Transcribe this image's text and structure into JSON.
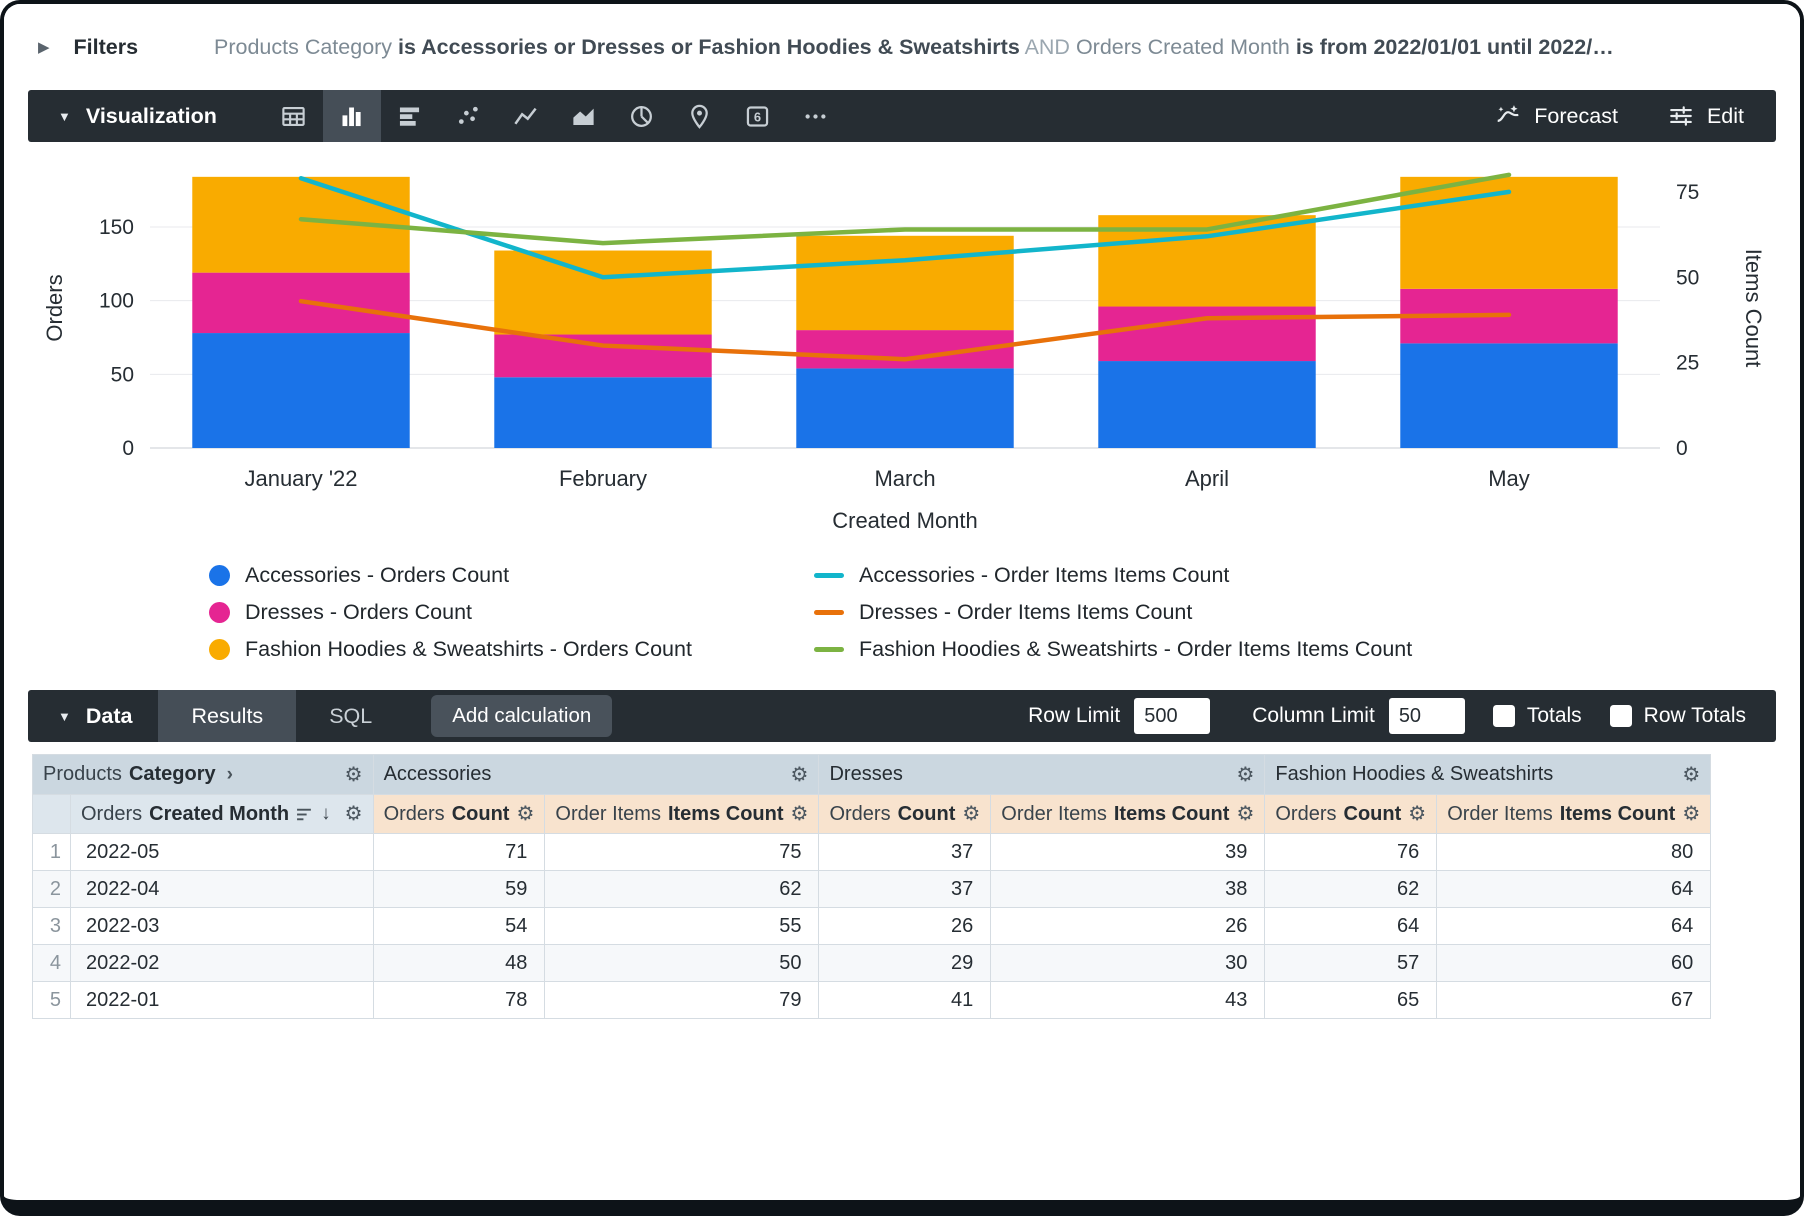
{
  "filters_bar": {
    "label": "Filters",
    "segments": [
      {
        "text": "Products Category ",
        "style": "dim"
      },
      {
        "text": "is Accessories or Dresses or Fashion Hoodies & Sweatshirts",
        "style": "em"
      },
      {
        "text": " AND ",
        "style": "and"
      },
      {
        "text": "Orders Created Month ",
        "style": "dim"
      },
      {
        "text": "is from 2022/01/01 until 2022/…",
        "style": "em"
      }
    ]
  },
  "viz_panel": {
    "label": "Visualization",
    "icons": [
      {
        "name": "table-chart-icon",
        "selected": false
      },
      {
        "name": "column-chart-icon",
        "selected": true
      },
      {
        "name": "bar-chart-icon",
        "selected": false
      },
      {
        "name": "scatter-chart-icon",
        "selected": false
      },
      {
        "name": "line-chart-icon",
        "selected": false
      },
      {
        "name": "area-chart-icon",
        "selected": false
      },
      {
        "name": "pie-chart-icon",
        "selected": false
      },
      {
        "name": "map-chart-icon",
        "selected": false
      },
      {
        "name": "single-value-icon",
        "selected": false
      },
      {
        "name": "more-options-icon",
        "selected": false
      }
    ],
    "forecast_label": "Forecast",
    "edit_label": "Edit"
  },
  "chart_data": {
    "type": "bar",
    "subtype": "stacked-column-with-lines",
    "categories": [
      "January '22",
      "February",
      "March",
      "April",
      "May"
    ],
    "x_axis_label": "Created Month",
    "left_axis": {
      "label": "Orders",
      "ticks": [
        0,
        50,
        100,
        150
      ],
      "max": 190
    },
    "right_axis": {
      "label": "Items Count",
      "ticks": [
        0,
        25,
        50,
        75
      ],
      "max": 82
    },
    "bar_series": [
      {
        "name": "Accessories - Orders Count",
        "color": "#1A73E8",
        "values": [
          78,
          48,
          54,
          59,
          71
        ]
      },
      {
        "name": "Dresses - Orders Count",
        "color": "#E52592",
        "values": [
          41,
          29,
          26,
          37,
          37
        ]
      },
      {
        "name": "Fashion Hoodies & Sweatshirts - Orders Count",
        "color": "#F9AB00",
        "values": [
          65,
          57,
          64,
          62,
          76
        ]
      }
    ],
    "line_series": [
      {
        "name": "Accessories - Order Items Items Count",
        "color": "#12B5CB",
        "values": [
          79,
          50,
          55,
          62,
          75
        ]
      },
      {
        "name": "Dresses - Order Items Items Count",
        "color": "#E8710A",
        "values": [
          43,
          30,
          26,
          38,
          39
        ]
      },
      {
        "name": "Fashion Hoodies & Sweatshirts - Order Items Items Count",
        "color": "#7CB342",
        "values": [
          67,
          60,
          64,
          64,
          80
        ]
      }
    ],
    "legend_position": "bottom",
    "grid": true
  },
  "data_panel": {
    "label": "Data",
    "tabs": [
      {
        "label": "Results",
        "active": true
      },
      {
        "label": "SQL",
        "active": false
      }
    ],
    "add_calculation_label": "Add calculation",
    "row_limit_label": "Row Limit",
    "row_limit_value": "500",
    "column_limit_label": "Column Limit",
    "column_limit_value": "50",
    "totals_label": "Totals",
    "row_totals_label": "Row Totals"
  },
  "table": {
    "dimension_group": {
      "view": "Products",
      "field": "Category"
    },
    "dimension_column": {
      "view": "Orders",
      "field": "Created Month"
    },
    "measure_groups": [
      {
        "label": "Accessories",
        "columns": [
          {
            "view": "Orders",
            "field": "Count"
          },
          {
            "view": "Order Items",
            "field": "Items Count"
          }
        ]
      },
      {
        "label": "Dresses",
        "columns": [
          {
            "view": "Orders",
            "field": "Count"
          },
          {
            "view": "Order Items",
            "field": "Items Count"
          }
        ]
      },
      {
        "label": "Fashion Hoodies & Sweatshirts",
        "columns": [
          {
            "view": "Orders",
            "field": "Count"
          },
          {
            "view": "Order Items",
            "field": "Items Count"
          }
        ]
      }
    ],
    "rows": [
      {
        "num": 1,
        "dim": "2022-05",
        "values": [
          71,
          75,
          37,
          39,
          76,
          80
        ]
      },
      {
        "num": 2,
        "dim": "2022-04",
        "values": [
          59,
          62,
          37,
          38,
          62,
          64
        ]
      },
      {
        "num": 3,
        "dim": "2022-03",
        "values": [
          54,
          55,
          26,
          26,
          64,
          64
        ]
      },
      {
        "num": 4,
        "dim": "2022-02",
        "values": [
          48,
          50,
          29,
          30,
          57,
          60
        ]
      },
      {
        "num": 5,
        "dim": "2022-01",
        "values": [
          78,
          79,
          41,
          43,
          65,
          67
        ]
      }
    ]
  }
}
